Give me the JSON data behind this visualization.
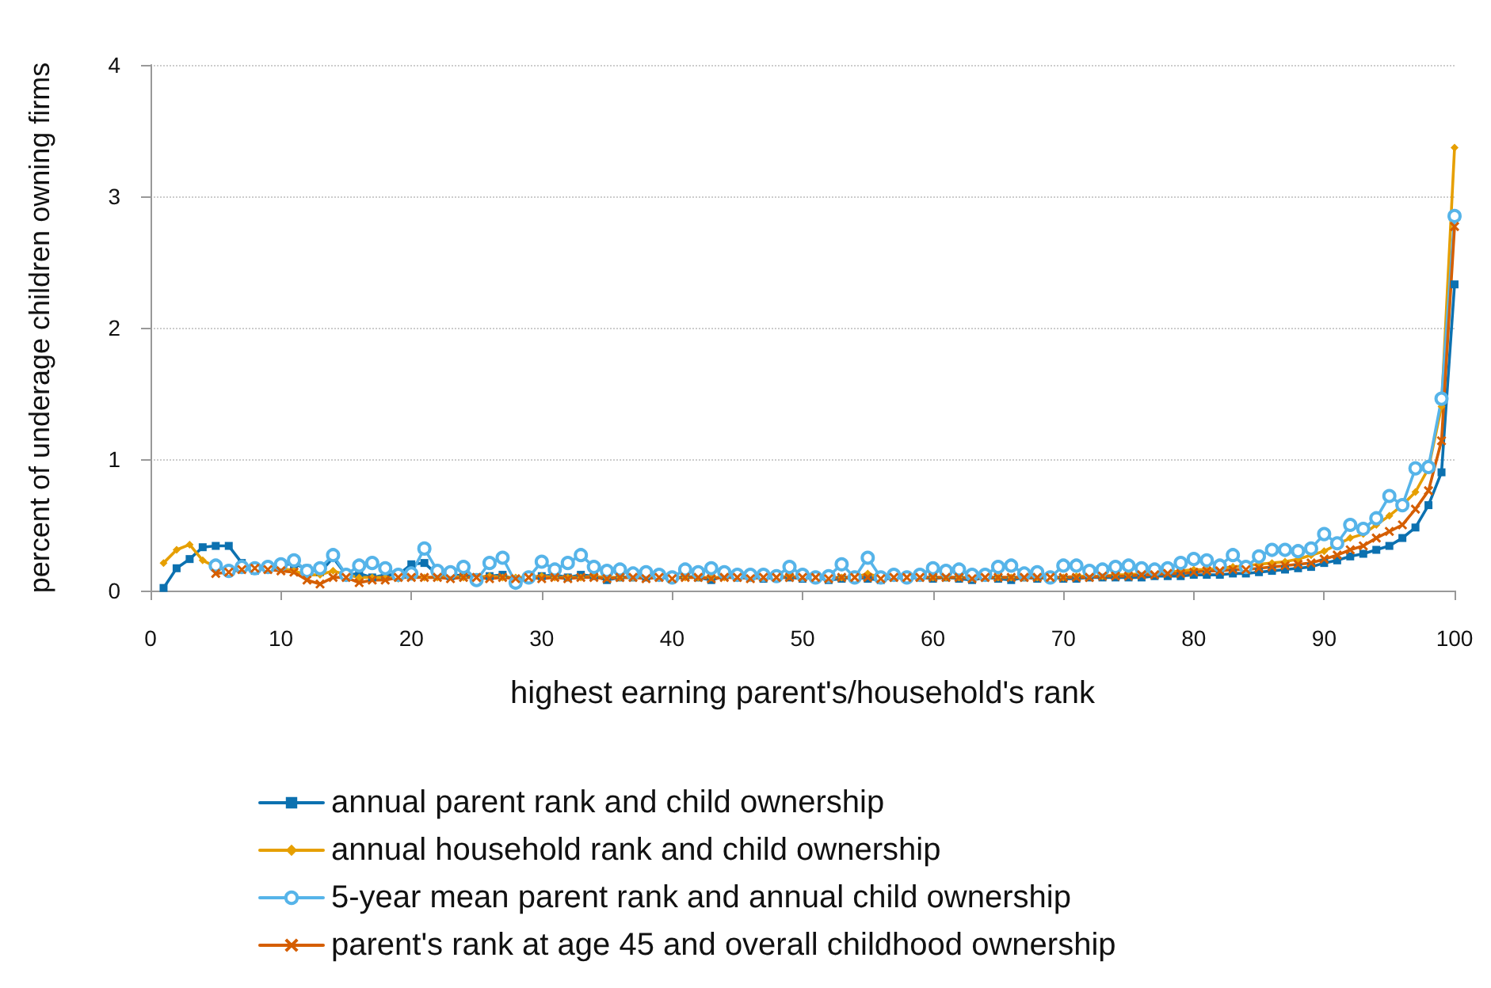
{
  "chart_data": {
    "type": "line",
    "xlabel": "highest earning parent's/household's rank",
    "ylabel": "percent of underage children owning firms",
    "xlim": [
      0,
      100
    ],
    "xticks": [
      0,
      10,
      20,
      30,
      40,
      50,
      60,
      70,
      80,
      90,
      100
    ],
    "ylim": [
      0,
      4
    ],
    "yticks": [
      0,
      1,
      2,
      3,
      4
    ],
    "grid": "y",
    "legend": "bottom",
    "line_style": "solid",
    "x": [
      1,
      2,
      3,
      4,
      5,
      6,
      7,
      8,
      9,
      10,
      11,
      12,
      13,
      14,
      15,
      16,
      17,
      18,
      19,
      20,
      21,
      22,
      23,
      24,
      25,
      26,
      27,
      28,
      29,
      30,
      31,
      32,
      33,
      34,
      35,
      36,
      37,
      38,
      39,
      40,
      41,
      42,
      43,
      44,
      45,
      46,
      47,
      48,
      49,
      50,
      51,
      52,
      53,
      54,
      55,
      56,
      57,
      58,
      59,
      60,
      61,
      62,
      63,
      64,
      65,
      66,
      67,
      68,
      69,
      70,
      71,
      72,
      73,
      74,
      75,
      76,
      77,
      78,
      79,
      80,
      81,
      82,
      83,
      84,
      85,
      86,
      87,
      88,
      89,
      90,
      91,
      92,
      93,
      94,
      95,
      96,
      97,
      98,
      99,
      100
    ],
    "series": [
      {
        "name": "annual parent rank and child ownership",
        "color": "#0c71b0",
        "marker": "square",
        "values": [
          0.02,
          0.17,
          0.24,
          0.33,
          0.34,
          0.34,
          0.21,
          0.15,
          0.19,
          0.2,
          0.2,
          0.17,
          0.14,
          0.25,
          0.12,
          0.13,
          0.1,
          0.12,
          0.12,
          0.2,
          0.21,
          0.12,
          0.11,
          0.12,
          0.1,
          0.11,
          0.12,
          0.08,
          0.1,
          0.11,
          0.12,
          0.1,
          0.12,
          0.11,
          0.08,
          0.1,
          0.1,
          0.1,
          0.11,
          0.09,
          0.11,
          0.1,
          0.08,
          0.11,
          0.1,
          0.1,
          0.09,
          0.1,
          0.1,
          0.09,
          0.1,
          0.08,
          0.09,
          0.1,
          0.09,
          0.08,
          0.1,
          0.09,
          0.1,
          0.09,
          0.1,
          0.09,
          0.08,
          0.1,
          0.09,
          0.08,
          0.1,
          0.09,
          0.1,
          0.09,
          0.09,
          0.1,
          0.1,
          0.1,
          0.1,
          0.1,
          0.11,
          0.11,
          0.11,
          0.12,
          0.12,
          0.12,
          0.13,
          0.13,
          0.14,
          0.15,
          0.16,
          0.17,
          0.18,
          0.21,
          0.23,
          0.26,
          0.28,
          0.31,
          0.34,
          0.4,
          0.48,
          0.65,
          0.9,
          2.33
        ]
      },
      {
        "name": "annual household rank and child ownership",
        "color": "#e69f00",
        "marker": "diamond",
        "values": [
          0.21,
          0.31,
          0.35,
          0.23,
          0.18,
          0.15,
          0.18,
          0.17,
          0.16,
          0.17,
          0.15,
          0.12,
          0.12,
          0.15,
          0.12,
          0.1,
          0.1,
          0.1,
          0.09,
          0.11,
          0.1,
          0.1,
          0.11,
          0.1,
          0.1,
          0.11,
          0.1,
          0.1,
          0.1,
          0.11,
          0.1,
          0.1,
          0.1,
          0.11,
          0.1,
          0.1,
          0.1,
          0.11,
          0.1,
          0.1,
          0.1,
          0.1,
          0.1,
          0.1,
          0.1,
          0.1,
          0.1,
          0.1,
          0.11,
          0.1,
          0.1,
          0.1,
          0.1,
          0.1,
          0.13,
          0.1,
          0.1,
          0.1,
          0.1,
          0.1,
          0.1,
          0.1,
          0.1,
          0.1,
          0.1,
          0.1,
          0.1,
          0.1,
          0.1,
          0.1,
          0.11,
          0.11,
          0.11,
          0.12,
          0.12,
          0.13,
          0.13,
          0.14,
          0.15,
          0.16,
          0.16,
          0.17,
          0.18,
          0.19,
          0.2,
          0.21,
          0.22,
          0.24,
          0.27,
          0.3,
          0.35,
          0.4,
          0.43,
          0.5,
          0.57,
          0.65,
          0.75,
          0.93,
          1.4,
          3.37
        ]
      },
      {
        "name": "5-year mean parent rank and annual child ownership",
        "color": "#56b4e9",
        "marker": "circle",
        "values": [
          null,
          null,
          null,
          null,
          0.19,
          0.15,
          0.18,
          0.17,
          0.18,
          0.2,
          0.23,
          0.15,
          0.17,
          0.27,
          0.12,
          0.19,
          0.21,
          0.17,
          0.12,
          0.13,
          0.32,
          0.15,
          0.14,
          0.18,
          0.08,
          0.21,
          0.25,
          0.06,
          0.1,
          0.22,
          0.16,
          0.21,
          0.27,
          0.18,
          0.15,
          0.16,
          0.13,
          0.14,
          0.12,
          0.1,
          0.16,
          0.14,
          0.17,
          0.14,
          0.12,
          0.12,
          0.12,
          0.11,
          0.18,
          0.12,
          0.1,
          0.11,
          0.2,
          0.1,
          0.25,
          0.1,
          0.12,
          0.1,
          0.12,
          0.17,
          0.15,
          0.16,
          0.12,
          0.12,
          0.18,
          0.19,
          0.13,
          0.14,
          0.1,
          0.19,
          0.19,
          0.15,
          0.16,
          0.18,
          0.19,
          0.17,
          0.16,
          0.17,
          0.21,
          0.24,
          0.23,
          0.19,
          0.27,
          0.18,
          0.26,
          0.31,
          0.31,
          0.3,
          0.32,
          0.43,
          0.36,
          0.5,
          0.47,
          0.55,
          0.72,
          0.65,
          0.93,
          0.94,
          1.46,
          2.85
        ]
      },
      {
        "name": "parent's rank at age 45 and overall childhood ownership",
        "color": "#d55e00",
        "marker": "cross",
        "values": [
          null,
          null,
          null,
          null,
          0.13,
          0.14,
          0.16,
          0.17,
          0.16,
          0.15,
          0.14,
          0.08,
          0.05,
          0.1,
          0.1,
          0.06,
          0.08,
          0.08,
          0.1,
          0.1,
          0.1,
          0.1,
          0.09,
          0.1,
          0.1,
          0.09,
          0.1,
          0.09,
          0.1,
          0.09,
          0.1,
          0.09,
          0.1,
          0.1,
          0.09,
          0.1,
          0.1,
          0.09,
          0.1,
          0.09,
          0.1,
          0.1,
          0.09,
          0.1,
          0.1,
          0.09,
          0.1,
          0.1,
          0.1,
          0.1,
          0.1,
          0.09,
          0.1,
          0.1,
          0.1,
          0.09,
          0.1,
          0.1,
          0.1,
          0.1,
          0.1,
          0.1,
          0.09,
          0.1,
          0.1,
          0.1,
          0.1,
          0.1,
          0.1,
          0.1,
          0.1,
          0.1,
          0.11,
          0.11,
          0.11,
          0.12,
          0.12,
          0.13,
          0.13,
          0.14,
          0.15,
          0.15,
          0.16,
          0.16,
          0.17,
          0.18,
          0.19,
          0.2,
          0.21,
          0.24,
          0.27,
          0.31,
          0.34,
          0.4,
          0.45,
          0.5,
          0.62,
          0.76,
          1.14,
          2.77
        ]
      }
    ]
  }
}
